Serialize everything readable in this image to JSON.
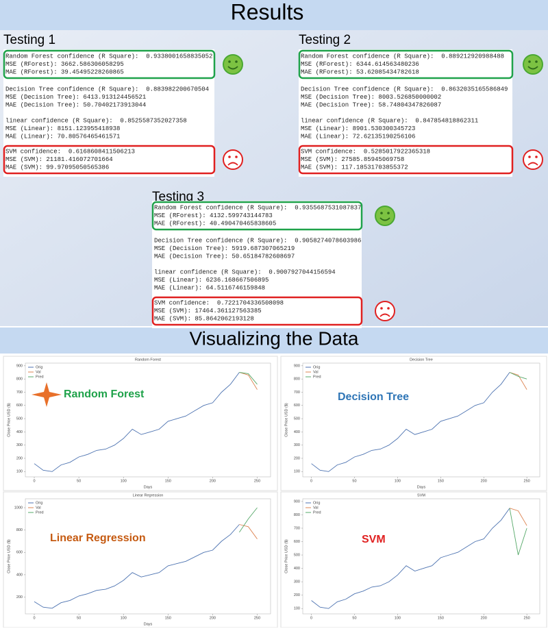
{
  "header": {
    "title": "Results"
  },
  "tests": [
    {
      "title": "Testing 1",
      "groups": [
        [
          "Random Forest confidence (R Square):  0.9338001658835052",
          "MSE (RForest): 3662.586306058295",
          "MAE (RForest): 39.45495228260865"
        ],
        [
          "Decision Tree confidence (R Square):  0.883982200670504",
          "MSE (Decision Tree): 6413.913124456521",
          "MAE (Decision Tree): 50.70402173913044"
        ],
        [
          "linear confidence (R Square):  0.8525587352027358",
          "MSE (Linear): 8151.123955418938",
          "MAE (Linear): 70.80576465461571"
        ],
        [
          "SVM confidence:  0.6168608411506213",
          "MSE (SVM): 21181.416072701664",
          "MAE (SVM): 99.97095050565386"
        ]
      ]
    },
    {
      "title": "Testing 2",
      "groups": [
        [
          "Random Forest confidence (R Square):  0.889212920988488",
          "MSE (RForest): 6344.614563480236",
          "MAE (RForest): 53.62085434782618"
        ],
        [
          "Decision Tree confidence (R Square):  0.8632035165586849",
          "MSE (Decision Tree): 8003.526850000002",
          "MAE (Decision Tree): 58.74804347826087"
        ],
        [
          "linear confidence (R Square):  0.847854818862311",
          "MSE (Linear): 8901.530300345723",
          "MAE (Linear): 72.62135190256106"
        ],
        [
          "SVM confidence:  0.5285017922365318",
          "MSE (SVM): 27585.85945069758",
          "MAE (SVM): 117.18531703855372"
        ]
      ]
    },
    {
      "title": "Testing 3",
      "groups": [
        [
          "Random Forest confidence (R Square):  0.9355687531087837",
          "MSE (RForest): 4132.599743144783",
          "MAE (RForest): 40.490470465838605"
        ],
        [
          "Decision Tree confidence (R Square):  0.9058274078603986",
          "MSE (Decision Tree): 5919.687307065219",
          "MAE (Decision Tree): 50.65184782608697"
        ],
        [
          "linear confidence (R Square):  0.9007927044156594",
          "MSE (Linear): 6236.168667506895",
          "MAE (Linear): 64.5116746159848"
        ],
        [
          "SVM confidence:  0.7221704336508098",
          "MSE (SVM): 17464.361127563385",
          "MAE (SVM): 85.8642062193128"
        ]
      ]
    }
  ],
  "section": {
    "title": "Visualizing the Data"
  },
  "chart_data": [
    {
      "type": "line",
      "title": "Random Forest",
      "annotation": "Random Forest",
      "annotation_color": "#1fa24a",
      "xlabel": "Days",
      "ylabel": "Close Price USD ($)",
      "x": [
        0,
        10,
        20,
        30,
        40,
        50,
        60,
        70,
        80,
        90,
        100,
        110,
        120,
        130,
        140,
        150,
        160,
        170,
        180,
        190,
        200,
        210,
        220,
        230,
        240,
        250
      ],
      "series": [
        {
          "name": "Orig",
          "color": "#4c72b0",
          "values": [
            160,
            110,
            100,
            150,
            170,
            210,
            230,
            260,
            270,
            300,
            350,
            420,
            380,
            400,
            420,
            480,
            500,
            520,
            560,
            600,
            620,
            700,
            760,
            850,
            null,
            null
          ]
        },
        {
          "name": "Val",
          "color": "#dd8452",
          "values": [
            null,
            null,
            null,
            null,
            null,
            null,
            null,
            null,
            null,
            null,
            null,
            null,
            null,
            null,
            null,
            null,
            null,
            null,
            null,
            null,
            null,
            null,
            null,
            850,
            830,
            720
          ]
        },
        {
          "name": "Pred",
          "color": "#55a868",
          "values": [
            null,
            null,
            null,
            null,
            null,
            null,
            null,
            null,
            null,
            null,
            null,
            null,
            null,
            null,
            null,
            null,
            null,
            null,
            null,
            null,
            null,
            null,
            null,
            850,
            840,
            760
          ]
        }
      ],
      "xlim": [
        -10,
        265
      ],
      "ylim": [
        60,
        920
      ],
      "xticks": [
        0,
        50,
        100,
        150,
        200,
        250
      ],
      "yticks": [
        100,
        200,
        300,
        400,
        500,
        600,
        700,
        800,
        900
      ]
    },
    {
      "type": "line",
      "title": "Decision Tree",
      "annotation": "Decision Tree",
      "annotation_color": "#2e75b6",
      "xlabel": "Days",
      "ylabel": "Close Price USD ($)",
      "x": [
        0,
        10,
        20,
        30,
        40,
        50,
        60,
        70,
        80,
        90,
        100,
        110,
        120,
        130,
        140,
        150,
        160,
        170,
        180,
        190,
        200,
        210,
        220,
        230,
        240,
        250
      ],
      "series": [
        {
          "name": "Orig",
          "color": "#4c72b0",
          "values": [
            160,
            110,
            100,
            150,
            170,
            210,
            230,
            260,
            270,
            300,
            350,
            420,
            380,
            400,
            420,
            480,
            500,
            520,
            560,
            600,
            620,
            700,
            760,
            850,
            null,
            null
          ]
        },
        {
          "name": "Val",
          "color": "#dd8452",
          "values": [
            null,
            null,
            null,
            null,
            null,
            null,
            null,
            null,
            null,
            null,
            null,
            null,
            null,
            null,
            null,
            null,
            null,
            null,
            null,
            null,
            null,
            null,
            null,
            850,
            830,
            720
          ]
        },
        {
          "name": "Pred",
          "color": "#55a868",
          "values": [
            null,
            null,
            null,
            null,
            null,
            null,
            null,
            null,
            null,
            null,
            null,
            null,
            null,
            null,
            null,
            null,
            null,
            null,
            null,
            null,
            null,
            null,
            null,
            850,
            820,
            800
          ]
        }
      ],
      "xlim": [
        -10,
        265
      ],
      "ylim": [
        60,
        920
      ],
      "xticks": [
        0,
        50,
        100,
        150,
        200,
        250
      ],
      "yticks": [
        100,
        200,
        300,
        400,
        500,
        600,
        700,
        800,
        900
      ]
    },
    {
      "type": "line",
      "title": "Linear Regression",
      "annotation": "Linear Regression",
      "annotation_color": "#c55a11",
      "xlabel": "Days",
      "ylabel": "Close Price USD ($)",
      "x": [
        0,
        10,
        20,
        30,
        40,
        50,
        60,
        70,
        80,
        90,
        100,
        110,
        120,
        130,
        140,
        150,
        160,
        170,
        180,
        190,
        200,
        210,
        220,
        230,
        240,
        250
      ],
      "series": [
        {
          "name": "Orig",
          "color": "#4c72b0",
          "values": [
            160,
            110,
            100,
            150,
            170,
            210,
            230,
            260,
            270,
            300,
            350,
            420,
            380,
            400,
            420,
            480,
            500,
            520,
            560,
            600,
            620,
            700,
            760,
            850,
            null,
            null
          ]
        },
        {
          "name": "Val",
          "color": "#dd8452",
          "values": [
            null,
            null,
            null,
            null,
            null,
            null,
            null,
            null,
            null,
            null,
            null,
            null,
            null,
            null,
            null,
            null,
            null,
            null,
            null,
            null,
            null,
            null,
            null,
            850,
            830,
            720
          ]
        },
        {
          "name": "Pred",
          "color": "#55a868",
          "values": [
            null,
            null,
            null,
            null,
            null,
            null,
            null,
            null,
            null,
            null,
            null,
            null,
            null,
            null,
            null,
            null,
            null,
            null,
            null,
            null,
            null,
            null,
            null,
            780,
            900,
            1000
          ]
        }
      ],
      "xlim": [
        -10,
        265
      ],
      "ylim": [
        50,
        1080
      ],
      "xticks": [
        0,
        50,
        100,
        150,
        200,
        250
      ],
      "yticks": [
        200,
        400,
        600,
        800,
        1000
      ]
    },
    {
      "type": "line",
      "title": "SVM",
      "annotation": "SVM",
      "annotation_color": "#e02020",
      "ylabel": "Close Price USD ($)",
      "x": [
        0,
        10,
        20,
        30,
        40,
        50,
        60,
        70,
        80,
        90,
        100,
        110,
        120,
        130,
        140,
        150,
        160,
        170,
        180,
        190,
        200,
        210,
        220,
        230,
        240,
        250
      ],
      "series": [
        {
          "name": "Orig",
          "color": "#4c72b0",
          "values": [
            160,
            110,
            100,
            150,
            170,
            210,
            230,
            260,
            270,
            300,
            350,
            420,
            380,
            400,
            420,
            480,
            500,
            520,
            560,
            600,
            620,
            700,
            760,
            850,
            null,
            null
          ]
        },
        {
          "name": "Val",
          "color": "#dd8452",
          "values": [
            null,
            null,
            null,
            null,
            null,
            null,
            null,
            null,
            null,
            null,
            null,
            null,
            null,
            null,
            null,
            null,
            null,
            null,
            null,
            null,
            null,
            null,
            null,
            850,
            830,
            720
          ]
        },
        {
          "name": "Pred",
          "color": "#55a868",
          "values": [
            null,
            null,
            null,
            null,
            null,
            null,
            null,
            null,
            null,
            null,
            null,
            null,
            null,
            null,
            null,
            null,
            null,
            null,
            null,
            null,
            null,
            null,
            null,
            850,
            500,
            700
          ]
        }
      ],
      "xlim": [
        -10,
        265
      ],
      "ylim": [
        60,
        920
      ],
      "xticks": [
        0,
        50,
        100,
        150,
        200,
        250
      ],
      "yticks": [
        100,
        200,
        300,
        400,
        500,
        600,
        700,
        800,
        900
      ]
    }
  ]
}
